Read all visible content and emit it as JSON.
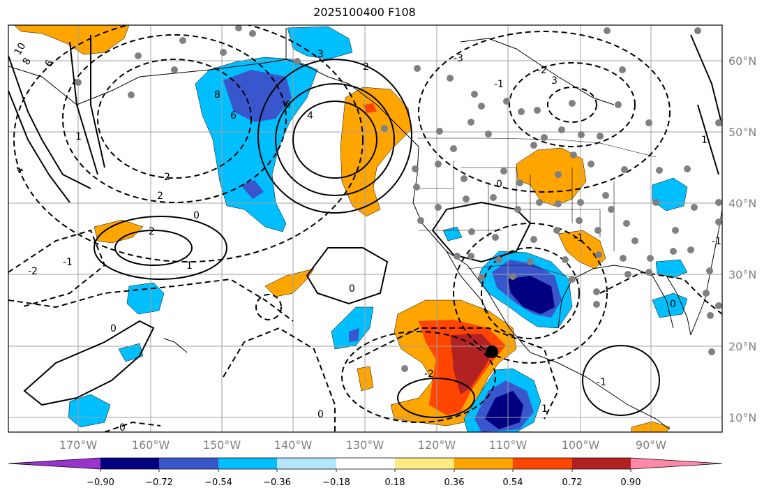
{
  "title": "2025100400 F108",
  "latitude_labels": [
    "60°N",
    "50°N",
    "40°N",
    "30°N",
    "20°N",
    "10°N"
  ],
  "longitude_labels": [
    "170°W",
    "160°W",
    "150°W",
    "140°W",
    "130°W",
    "120°W",
    "110°W",
    "100°W",
    "90°W"
  ],
  "colorbar": {
    "tick_labels": [
      "−0.90",
      "−0.72",
      "−0.54",
      "−0.36",
      "−0.18",
      "0.18",
      "0.36",
      "0.54",
      "0.72",
      "0.90"
    ],
    "colors": [
      "#9933cc",
      "#000080",
      "#3a56cc",
      "#00bfff",
      "#b3e5ff",
      "#ffffff",
      "#ffeb80",
      "#ffa500",
      "#ff4500",
      "#b22222",
      "#ff88aa"
    ]
  },
  "contour_labels": [
    "10",
    "8",
    "6",
    "4",
    "2",
    "0",
    "-2",
    "8",
    "6",
    "6",
    "4",
    "3",
    "2",
    "1",
    "0",
    "-2",
    "2",
    "1",
    "-1",
    "0",
    "0",
    "1",
    "-1",
    "0",
    "-2",
    "3",
    "-3",
    "-2",
    "-1",
    "0",
    "-1",
    "1",
    "-1",
    "0"
  ],
  "colors": {
    "gray_station": "#808080",
    "land_line": "#000000"
  }
}
